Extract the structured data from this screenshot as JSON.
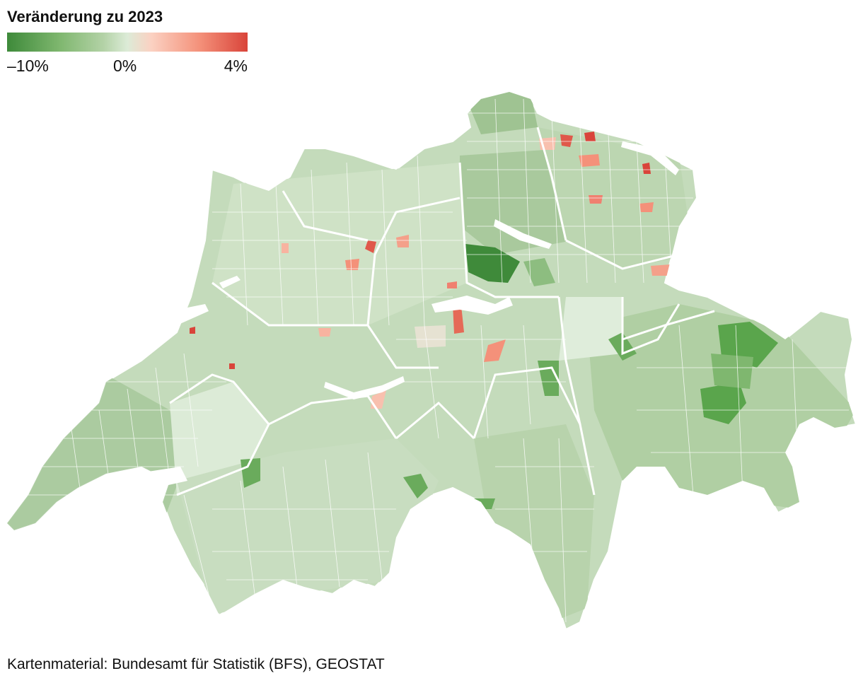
{
  "legend": {
    "title": "Veränderung zu 2023",
    "min_label": "–10%",
    "mid_label": "0%",
    "max_label": "4%",
    "colors": [
      "#3e8a3a",
      "#7fb76f",
      "#b3d2a6",
      "#dcebd7",
      "#fbd1c2",
      "#f4917a",
      "#d9443a"
    ]
  },
  "map": {
    "country": "Schweiz",
    "border_color": "#ffffff",
    "base_fill": "#c4dbbb"
  },
  "source": "Kartenmaterial: Bundesamt für Statistik (BFS), GEOSTAT"
}
